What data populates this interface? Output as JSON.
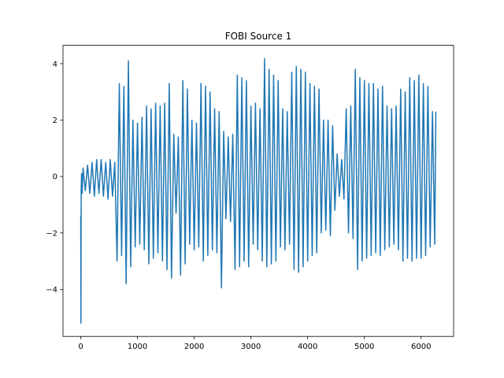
{
  "chart_data": {
    "type": "line",
    "title": "FOBI Source 1",
    "xlim": [
      -313,
      6573
    ],
    "ylim": [
      -5.67,
      4.65
    ],
    "xticks": [
      0,
      1000,
      2000,
      3000,
      4000,
      5000,
      6000
    ],
    "yticks": [
      {
        "value": -4,
        "label": "−4"
      },
      {
        "value": -2,
        "label": "−2"
      },
      0,
      2,
      4
    ],
    "grid": false,
    "series": [
      {
        "color": "#1f77b4",
        "x": [
          0,
          3,
          8,
          15,
          25,
          40,
          80,
          120,
          160,
          200,
          240,
          280,
          320,
          360,
          400,
          440,
          480,
          520,
          560,
          600,
          640,
          680,
          720,
          760,
          800,
          840,
          880,
          920,
          960,
          1000,
          1040,
          1080,
          1120,
          1160,
          1200,
          1240,
          1280,
          1320,
          1360,
          1400,
          1440,
          1480,
          1520,
          1560,
          1600,
          1640,
          1680,
          1720,
          1760,
          1800,
          1840,
          1880,
          1920,
          1960,
          2000,
          2040,
          2080,
          2120,
          2160,
          2200,
          2240,
          2280,
          2320,
          2360,
          2400,
          2440,
          2480,
          2520,
          2560,
          2600,
          2640,
          2680,
          2720,
          2760,
          2800,
          2840,
          2880,
          2920,
          2960,
          3000,
          3040,
          3080,
          3120,
          3160,
          3200,
          3240,
          3280,
          3320,
          3360,
          3400,
          3440,
          3480,
          3520,
          3560,
          3600,
          3640,
          3680,
          3720,
          3760,
          3800,
          3840,
          3880,
          3920,
          3960,
          4000,
          4040,
          4080,
          4120,
          4160,
          4200,
          4240,
          4280,
          4320,
          4360,
          4400,
          4440,
          4480,
          4520,
          4560,
          4600,
          4640,
          4680,
          4720,
          4760,
          4800,
          4840,
          4880,
          4920,
          4960,
          5000,
          5040,
          5080,
          5120,
          5160,
          5200,
          5240,
          5280,
          5320,
          5360,
          5400,
          5440,
          5480,
          5520,
          5560,
          5600,
          5640,
          5680,
          5720,
          5760,
          5800,
          5840,
          5880,
          5920,
          5960,
          6000,
          6040,
          6080,
          6120,
          6160,
          6200,
          6240,
          6260
        ],
        "values": [
          -1.4,
          -5.2,
          -0.4,
          0.1,
          -0.6,
          0.3,
          -0.5,
          0.4,
          -0.6,
          0.5,
          -0.7,
          0.6,
          -0.6,
          0.6,
          -0.7,
          0.5,
          -0.8,
          0.6,
          -0.7,
          0.5,
          -3.0,
          3.3,
          -2.8,
          3.2,
          -3.8,
          4.1,
          -3.2,
          2.0,
          -2.5,
          1.9,
          -2.4,
          2.1,
          -2.6,
          2.5,
          -3.1,
          2.4,
          -2.9,
          2.6,
          -2.7,
          2.5,
          -3.0,
          2.6,
          -3.3,
          3.3,
          -3.6,
          1.5,
          -1.3,
          1.4,
          -3.5,
          3.4,
          -3.1,
          3.1,
          -2.4,
          2.0,
          -2.6,
          1.9,
          -2.5,
          3.3,
          -3.0,
          3.2,
          -2.8,
          3.0,
          -2.6,
          2.4,
          -2.7,
          2.3,
          -3.95,
          1.6,
          -1.5,
          1.4,
          -1.6,
          1.5,
          -3.3,
          3.6,
          -3.2,
          3.5,
          -3.0,
          3.4,
          -3.2,
          2.5,
          -2.4,
          2.6,
          -2.6,
          2.4,
          -3.0,
          4.18,
          -3.2,
          3.8,
          -3.1,
          3.6,
          -3.0,
          3.4,
          -2.5,
          2.4,
          -2.6,
          2.3,
          -2.4,
          3.7,
          -3.3,
          3.9,
          -3.4,
          3.8,
          -3.2,
          3.7,
          -3.0,
          3.3,
          -2.8,
          3.2,
          -2.7,
          3.1,
          -2.0,
          2.0,
          -1.9,
          2.0,
          -2.1,
          1.8,
          -1.2,
          0.8,
          -0.7,
          0.6,
          -0.8,
          2.4,
          -2.0,
          2.5,
          -2.2,
          3.8,
          -3.3,
          3.5,
          -3.0,
          3.4,
          -2.9,
          3.3,
          -2.8,
          3.3,
          -2.7,
          3.1,
          -2.8,
          3.2,
          -2.6,
          2.5,
          -2.5,
          2.4,
          -2.4,
          2.5,
          -2.6,
          3.1,
          -3.0,
          3.0,
          -2.9,
          3.5,
          -3.0,
          3.4,
          -2.9,
          3.6,
          -2.9,
          3.3,
          -2.8,
          3.2,
          -2.5,
          2.3,
          -2.4,
          2.3
        ]
      }
    ]
  }
}
